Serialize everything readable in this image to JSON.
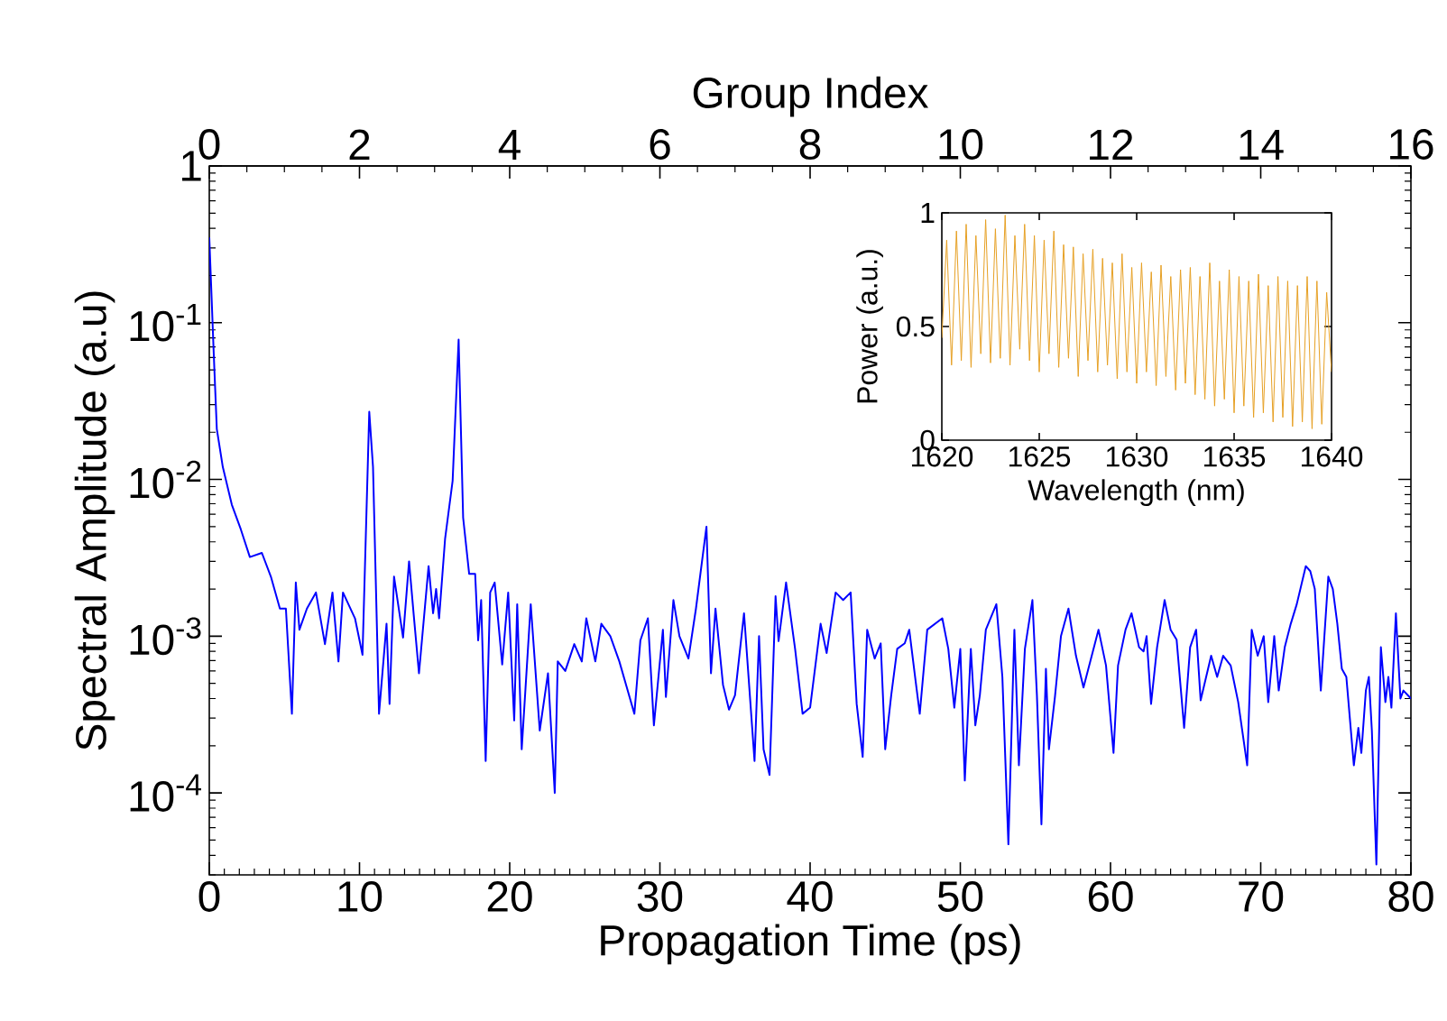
{
  "chart_data": [
    {
      "type": "line",
      "log": "y",
      "xlabel": "Propagation Time (ps)",
      "ylabel": "Spectral Amplitude (a.u)",
      "x2label": "Group Index",
      "xlim": [
        0,
        80
      ],
      "ylim": [
        3e-05,
        1
      ],
      "x2lim": [
        0,
        16
      ],
      "xticks": [
        0,
        10,
        20,
        30,
        40,
        50,
        60,
        70,
        80
      ],
      "x2ticks": [
        0,
        2,
        4,
        6,
        8,
        10,
        12,
        14,
        16
      ],
      "yticks": [
        {
          "value": 0.0001,
          "label": "10$^{-4}$"
        },
        {
          "value": 0.001,
          "label": "10$^{-3}$"
        },
        {
          "value": 0.01,
          "label": "10$^{-2}$"
        },
        {
          "value": 0.1,
          "label": "10$^{-1}$"
        },
        1
      ],
      "x": [
        0,
        0.3,
        0.5,
        0.9,
        1.5,
        2.1,
        2.7,
        3.5,
        4.1,
        4.7,
        5.1,
        5.5,
        5.76,
        6.0,
        6.5,
        7.1,
        7.7,
        8.2,
        8.6,
        8.9,
        9.7,
        10.2,
        10.65,
        10.9,
        11.3,
        11.8,
        12.0,
        12.3,
        12.9,
        13.3,
        13.6,
        13.96,
        14.6,
        14.9,
        15.1,
        15.3,
        15.7,
        16.2,
        16.6,
        16.9,
        17.3,
        17.7,
        17.9,
        18.1,
        18.4,
        18.7,
        19.0,
        19.5,
        19.9,
        20.3,
        20.5,
        20.8,
        21.4,
        22.0,
        22.55,
        23.0,
        23.2,
        23.7,
        24.3,
        24.8,
        25.1,
        25.7,
        26.1,
        26.7,
        27.3,
        28.3,
        28.7,
        29.2,
        29.6,
        30.2,
        30.4,
        30.9,
        31.3,
        31.9,
        32.4,
        33.1,
        33.4,
        33.7,
        34.2,
        34.6,
        35.0,
        35.6,
        36.3,
        36.6,
        36.9,
        37.3,
        37.7,
        37.9,
        38.4,
        39.0,
        39.5,
        40.0,
        40.7,
        41.1,
        41.7,
        42.2,
        42.7,
        43.1,
        43.5,
        43.8,
        44.3,
        44.7,
        45.0,
        45.4,
        45.8,
        46.3,
        46.6,
        47.0,
        47.3,
        47.8,
        48.8,
        49.2,
        49.6,
        50.0,
        50.3,
        50.7,
        51.0,
        51.3,
        51.7,
        52.4,
        52.8,
        53.2,
        53.6,
        53.9,
        54.3,
        54.8,
        55.1,
        55.4,
        55.7,
        55.9,
        56.3,
        56.7,
        57.2,
        57.7,
        58.2,
        58.7,
        59.2,
        59.7,
        60.2,
        60.5,
        61.0,
        61.4,
        61.9,
        62.2,
        62.4,
        62.7,
        63.1,
        63.6,
        64.0,
        64.4,
        64.9,
        65.3,
        65.7,
        66.0,
        66.7,
        67.1,
        67.5,
        68.0,
        68.5,
        69.1,
        69.4,
        69.8,
        70.2,
        70.5,
        70.9,
        71.2,
        71.6,
        72.0,
        72.4,
        73.0,
        73.3,
        73.6,
        74.0,
        74.5,
        74.8,
        75.1,
        75.4,
        75.7,
        76.2,
        76.5,
        76.7,
        77.0,
        77.2,
        77.4,
        77.7,
        78.0,
        78.3,
        78.5,
        78.7,
        79.0,
        79.3,
        79.5,
        80.0
      ],
      "series": [
        {
          "color": "#0000ff",
          "values": [
            0.35,
            0.062,
            0.021,
            0.012,
            0.0069,
            0.0048,
            0.0032,
            0.0034,
            0.0024,
            0.0015,
            0.0015,
            0.00032,
            0.0022,
            0.0011,
            0.0015,
            0.0019,
            0.00089,
            0.0019,
            0.00069,
            0.0019,
            0.0013,
            0.00076,
            0.027,
            0.012,
            0.00032,
            0.0012,
            0.00037,
            0.0024,
            0.00098,
            0.003,
            0.0014,
            0.00058,
            0.0028,
            0.0014,
            0.002,
            0.0013,
            0.0042,
            0.0098,
            0.078,
            0.0057,
            0.0025,
            0.0025,
            0.00094,
            0.0017,
            0.00016,
            0.0019,
            0.0022,
            0.00066,
            0.0019,
            0.00029,
            0.0016,
            0.00019,
            0.0016,
            0.00025,
            0.00058,
            0.0001,
            0.00069,
            0.0006,
            0.00089,
            0.00069,
            0.0013,
            0.00069,
            0.0012,
            0.001,
            0.00069,
            0.00032,
            0.00094,
            0.0013,
            0.00027,
            0.0011,
            0.00041,
            0.0017,
            0.001,
            0.00072,
            0.0015,
            0.005,
            0.00058,
            0.0015,
            0.00049,
            0.00034,
            0.00042,
            0.0014,
            0.00016,
            0.001,
            0.00019,
            0.00013,
            0.0018,
            0.00093,
            0.0022,
            0.00083,
            0.00032,
            0.00035,
            0.0012,
            0.00078,
            0.0019,
            0.0017,
            0.0019,
            0.00037,
            0.00017,
            0.0011,
            0.00072,
            0.0009,
            0.00019,
            0.00042,
            0.00083,
            0.0009,
            0.0011,
            0.00054,
            0.00032,
            0.0011,
            0.0013,
            0.00083,
            0.00035,
            0.00083,
            0.00012,
            0.00083,
            0.00027,
            0.00042,
            0.0011,
            0.0016,
            0.00055,
            4.7e-05,
            0.0011,
            0.00015,
            0.00083,
            0.0017,
            0.00042,
            6.3e-05,
            0.00062,
            0.00019,
            0.00041,
            0.001,
            0.0015,
            0.00075,
            0.00047,
            0.00072,
            0.0011,
            0.00065,
            0.00018,
            0.00065,
            0.0011,
            0.0014,
            0.00085,
            0.0008,
            0.001,
            0.00037,
            0.00085,
            0.0017,
            0.0011,
            0.00095,
            0.00026,
            0.00085,
            0.0011,
            0.00039,
            0.00075,
            0.00055,
            0.00075,
            0.00065,
            0.00038,
            0.00015,
            0.0011,
            0.00075,
            0.001,
            0.00038,
            0.001,
            0.00045,
            0.00085,
            0.0012,
            0.0016,
            0.0028,
            0.0026,
            0.002,
            0.00045,
            0.0024,
            0.002,
            0.0012,
            0.00062,
            0.00055,
            0.00015,
            0.00026,
            0.00018,
            0.00045,
            0.00055,
            0.00025,
            3.5e-05,
            0.00085,
            0.00038,
            0.00055,
            0.00035,
            0.0014,
            0.0004,
            0.00045,
            0.0004
          ]
        }
      ]
    },
    {
      "type": "line",
      "xlabel": "Wavelength (nm)",
      "ylabel": "Power (a.u.)",
      "xlim": [
        1620,
        1640
      ],
      "ylim": [
        0,
        1
      ],
      "xticks": [
        1620,
        1625,
        1630,
        1635,
        1640
      ],
      "yticks": [
        0,
        0.5,
        1
      ],
      "x": [
        1620,
        1620.25,
        1620.5,
        1620.75,
        1621,
        1621.25,
        1621.5,
        1621.75,
        1622,
        1622.25,
        1622.5,
        1622.75,
        1623,
        1623.25,
        1623.5,
        1623.75,
        1624,
        1624.25,
        1624.5,
        1624.75,
        1625,
        1625.25,
        1625.5,
        1625.75,
        1626,
        1626.25,
        1626.5,
        1626.75,
        1627,
        1627.25,
        1627.5,
        1627.75,
        1628,
        1628.25,
        1628.5,
        1628.75,
        1629,
        1629.25,
        1629.5,
        1629.75,
        1630,
        1630.25,
        1630.5,
        1630.75,
        1631,
        1631.25,
        1631.5,
        1631.75,
        1632,
        1632.25,
        1632.5,
        1632.75,
        1633,
        1633.25,
        1633.5,
        1633.75,
        1634,
        1634.25,
        1634.5,
        1634.75,
        1635,
        1635.25,
        1635.5,
        1635.75,
        1636,
        1636.25,
        1636.5,
        1636.75,
        1637,
        1637.25,
        1637.5,
        1637.75,
        1638,
        1638.25,
        1638.5,
        1638.75,
        1639,
        1639.25,
        1639.5,
        1639.75,
        1640
      ],
      "series": [
        {
          "color": "#e6a023",
          "values": [
            0.45,
            0.88,
            0.33,
            0.92,
            0.35,
            0.95,
            0.32,
            0.9,
            0.38,
            0.97,
            0.34,
            0.93,
            0.36,
            0.99,
            0.33,
            0.9,
            0.4,
            0.95,
            0.35,
            0.9,
            0.3,
            0.88,
            0.38,
            0.92,
            0.32,
            0.86,
            0.36,
            0.85,
            0.28,
            0.82,
            0.35,
            0.84,
            0.3,
            0.8,
            0.33,
            0.78,
            0.27,
            0.82,
            0.3,
            0.76,
            0.25,
            0.78,
            0.3,
            0.74,
            0.24,
            0.77,
            0.28,
            0.72,
            0.22,
            0.75,
            0.25,
            0.76,
            0.2,
            0.72,
            0.18,
            0.78,
            0.15,
            0.7,
            0.18,
            0.75,
            0.12,
            0.72,
            0.15,
            0.7,
            0.1,
            0.73,
            0.12,
            0.68,
            0.08,
            0.72,
            0.1,
            0.7,
            0.06,
            0.68,
            0.08,
            0.72,
            0.05,
            0.7,
            0.07,
            0.65,
            0.3
          ]
        }
      ]
    }
  ]
}
